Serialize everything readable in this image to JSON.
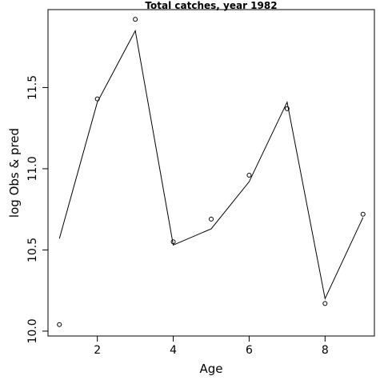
{
  "chart_data": {
    "type": "line",
    "title": "Total catches, year 1982",
    "xlabel": "Age",
    "ylabel": "log Obs & pred",
    "xlim": [
      0.7,
      9.3
    ],
    "ylim": [
      9.97,
      11.98
    ],
    "x_ticks": [
      2,
      4,
      6,
      8
    ],
    "y_ticks": [
      10.0,
      10.5,
      11.0,
      11.5
    ],
    "x_tick_labels": [
      "2",
      "4",
      "6",
      "8"
    ],
    "y_tick_labels": [
      "10.0",
      "10.5",
      "11.0",
      "11.5"
    ],
    "grid": false,
    "series": [
      {
        "role": "observed",
        "style": "points",
        "x": [
          1,
          2,
          3,
          4,
          5,
          6,
          7,
          8,
          9
        ],
        "y": [
          10.04,
          11.43,
          11.92,
          10.55,
          10.69,
          10.96,
          11.37,
          10.17,
          10.72
        ]
      },
      {
        "role": "predicted",
        "style": "line",
        "x": [
          1,
          2,
          3,
          4,
          5,
          6,
          7,
          8,
          9
        ],
        "y": [
          10.57,
          11.41,
          11.85,
          10.53,
          10.63,
          10.92,
          11.41,
          10.2,
          10.7
        ]
      }
    ]
  }
}
